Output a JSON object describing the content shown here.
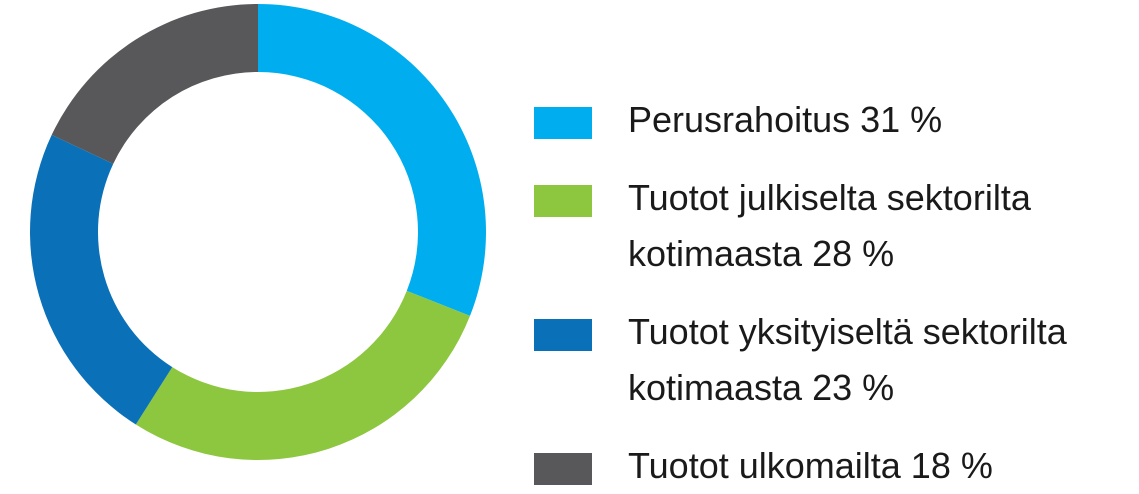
{
  "chart_data": {
    "type": "pie",
    "donut": true,
    "legend_position": "right",
    "categories": [
      "Perusrahoitus 31 %",
      "Tuotot julkiselta sektorilta\nkotimaasta 28 %",
      "Tuotot yksityiseltä sektorilta\nkotimaasta 23 %",
      "Tuotot ulkomailta 18 %"
    ],
    "values": [
      31,
      28,
      23,
      18
    ],
    "colors": [
      "#00aeef",
      "#8dc63f",
      "#0a71b8",
      "#58585a"
    ]
  }
}
